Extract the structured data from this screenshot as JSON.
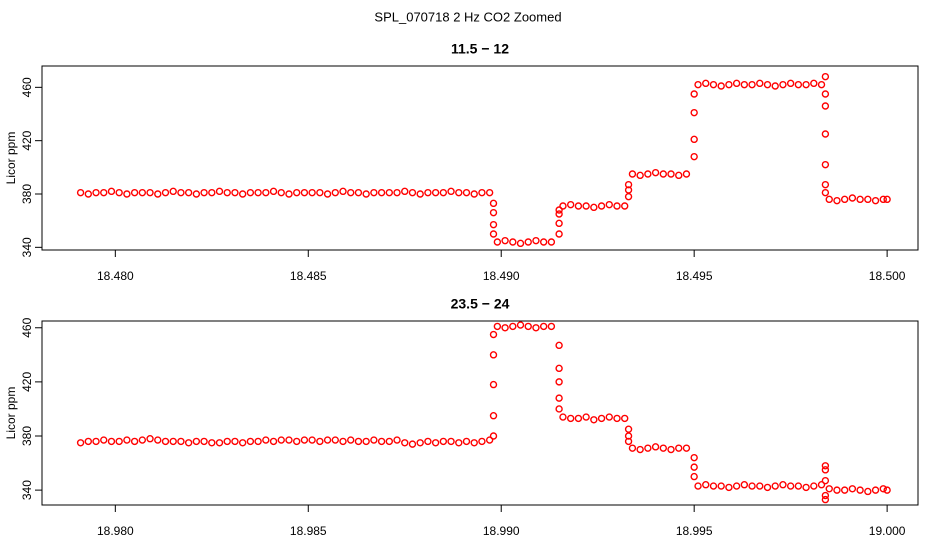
{
  "title": "SPL_070718  2 Hz CO2 Zoomed",
  "chart_data": [
    {
      "type": "scatter",
      "title": "11.5 − 12",
      "y_label": "Licor ppm",
      "color": "#ff0000",
      "xlim": [
        18.4781,
        18.5008
      ],
      "ylim": [
        338,
        476
      ],
      "xticks": [
        {
          "value": 18.48,
          "label": "18.480"
        },
        {
          "value": 18.485,
          "label": "18.485"
        },
        {
          "value": 18.49,
          "label": "18.490"
        },
        {
          "value": 18.495,
          "label": "18.495"
        },
        {
          "value": 18.5,
          "label": "18.500"
        }
      ],
      "yticks": [
        340,
        380,
        420,
        460
      ],
      "x": [
        18.4791,
        18.4793,
        18.4795,
        18.4797,
        18.4799,
        18.4801,
        18.4803,
        18.4805,
        18.4807,
        18.4809,
        18.4811,
        18.4813,
        18.4815,
        18.4817,
        18.4819,
        18.4821,
        18.4823,
        18.4825,
        18.4827,
        18.4829,
        18.4831,
        18.4833,
        18.4835,
        18.4837,
        18.4839,
        18.4841,
        18.4843,
        18.4845,
        18.4847,
        18.4849,
        18.4851,
        18.4853,
        18.4855,
        18.4857,
        18.4859,
        18.4861,
        18.4863,
        18.4865,
        18.4867,
        18.4869,
        18.4871,
        18.4873,
        18.4875,
        18.4877,
        18.4879,
        18.4881,
        18.4883,
        18.4885,
        18.4887,
        18.4889,
        18.4891,
        18.4893,
        18.4895,
        18.4897,
        18.4898,
        18.4898,
        18.4898,
        18.4898,
        18.4899,
        18.4901,
        18.4903,
        18.4905,
        18.4907,
        18.4909,
        18.4911,
        18.4913,
        18.4915,
        18.4915,
        18.4915,
        18.4915,
        18.4916,
        18.4918,
        18.492,
        18.4922,
        18.4924,
        18.4926,
        18.4928,
        18.493,
        18.4932,
        18.4933,
        18.4933,
        18.4933,
        18.4934,
        18.4936,
        18.4938,
        18.494,
        18.4942,
        18.4944,
        18.4946,
        18.4948,
        18.495,
        18.495,
        18.495,
        18.495,
        18.4951,
        18.4953,
        18.4955,
        18.4957,
        18.4959,
        18.4961,
        18.4963,
        18.4965,
        18.4967,
        18.4969,
        18.4971,
        18.4973,
        18.4975,
        18.4977,
        18.4979,
        18.4981,
        18.4983,
        18.4984,
        18.4984,
        18.4984,
        18.4984,
        18.4984,
        18.4984,
        18.4984,
        18.4985,
        18.4987,
        18.4989,
        18.4991,
        18.4993,
        18.4995,
        18.4997,
        18.4999,
        18.5
      ],
      "values": [
        381,
        380,
        381,
        381,
        382,
        381,
        380,
        381,
        381,
        381,
        380,
        381,
        382,
        381,
        381,
        380,
        381,
        381,
        382,
        381,
        381,
        380,
        381,
        381,
        381,
        382,
        381,
        380,
        381,
        381,
        381,
        381,
        380,
        381,
        382,
        381,
        381,
        380,
        381,
        381,
        381,
        381,
        382,
        381,
        380,
        381,
        381,
        381,
        382,
        381,
        381,
        380,
        381,
        381,
        373,
        366,
        357,
        350,
        344,
        345,
        344,
        343,
        344,
        345,
        344,
        344,
        350,
        358,
        365,
        368,
        371,
        372,
        371,
        371,
        370,
        371,
        372,
        371,
        371,
        378,
        383,
        387,
        395,
        394,
        395,
        396,
        395,
        395,
        394,
        395,
        408,
        421,
        441,
        455,
        462,
        463,
        462,
        461,
        462,
        463,
        462,
        462,
        463,
        462,
        461,
        462,
        463,
        462,
        462,
        463,
        462,
        468,
        455,
        446,
        425,
        402,
        387,
        381,
        376,
        375,
        376,
        377,
        376,
        376,
        375,
        376,
        376
      ]
    },
    {
      "type": "scatter",
      "title": "23.5 − 24",
      "y_label": "Licor ppm",
      "color": "#ff0000",
      "xlim": [
        18.9781,
        19.0008
      ],
      "ylim": [
        329,
        465
      ],
      "xticks": [
        {
          "value": 18.98,
          "label": "18.980"
        },
        {
          "value": 18.985,
          "label": "18.985"
        },
        {
          "value": 18.99,
          "label": "18.990"
        },
        {
          "value": 18.995,
          "label": "18.995"
        },
        {
          "value": 19,
          "label": "19.000"
        }
      ],
      "yticks": [
        340,
        380,
        420,
        460
      ],
      "x": [
        18.9791,
        18.9793,
        18.9795,
        18.9797,
        18.9799,
        18.9801,
        18.9803,
        18.9805,
        18.9807,
        18.9809,
        18.9811,
        18.9813,
        18.9815,
        18.9817,
        18.9819,
        18.9821,
        18.9823,
        18.9825,
        18.9827,
        18.9829,
        18.9831,
        18.9833,
        18.9835,
        18.9837,
        18.9839,
        18.9841,
        18.9843,
        18.9845,
        18.9847,
        18.9849,
        18.9851,
        18.9853,
        18.9855,
        18.9857,
        18.9859,
        18.9861,
        18.9863,
        18.9865,
        18.9867,
        18.9869,
        18.9871,
        18.9873,
        18.9875,
        18.9877,
        18.9879,
        18.9881,
        18.9883,
        18.9885,
        18.9887,
        18.9889,
        18.9891,
        18.9893,
        18.9895,
        18.9897,
        18.9898,
        18.9898,
        18.9898,
        18.9898,
        18.9898,
        18.9899,
        18.9901,
        18.9903,
        18.9905,
        18.9907,
        18.9909,
        18.9911,
        18.9913,
        18.9915,
        18.9915,
        18.9915,
        18.9915,
        18.9915,
        18.9916,
        18.9918,
        18.992,
        18.9922,
        18.9924,
        18.9926,
        18.9928,
        18.993,
        18.9932,
        18.9933,
        18.9933,
        18.9933,
        18.9934,
        18.9936,
        18.9938,
        18.994,
        18.9942,
        18.9944,
        18.9946,
        18.9948,
        18.995,
        18.995,
        18.995,
        18.9951,
        18.9953,
        18.9955,
        18.9957,
        18.9959,
        18.9961,
        18.9963,
        18.9965,
        18.9967,
        18.9969,
        18.9971,
        18.9973,
        18.9975,
        18.9977,
        18.9979,
        18.9981,
        18.9983,
        18.9984,
        18.9984,
        18.9984,
        18.9984,
        18.9984,
        18.9985,
        18.9987,
        18.9989,
        18.9991,
        18.9993,
        18.9995,
        18.9997,
        18.9999,
        19.0
      ],
      "values": [
        375,
        376,
        376,
        377,
        376,
        376,
        377,
        376,
        377,
        378,
        377,
        376,
        376,
        376,
        375,
        376,
        376,
        375,
        375,
        376,
        376,
        375,
        376,
        376,
        377,
        376,
        377,
        377,
        376,
        377,
        377,
        376,
        377,
        377,
        376,
        377,
        376,
        376,
        377,
        376,
        376,
        377,
        375,
        374,
        375,
        376,
        375,
        376,
        376,
        375,
        376,
        375,
        376,
        377,
        380,
        395,
        418,
        440,
        455,
        461,
        460,
        461,
        462,
        461,
        460,
        461,
        461,
        447,
        430,
        420,
        408,
        400,
        394,
        393,
        393,
        394,
        392,
        393,
        394,
        393,
        393,
        385,
        380,
        376,
        371,
        370,
        371,
        372,
        371,
        370,
        371,
        371,
        364,
        357,
        350,
        343,
        344,
        343,
        343,
        342,
        343,
        344,
        343,
        343,
        342,
        343,
        344,
        343,
        343,
        342,
        343,
        344,
        358,
        355,
        336,
        333,
        347,
        341,
        340,
        340,
        341,
        340,
        339,
        340,
        341,
        340
      ]
    }
  ]
}
